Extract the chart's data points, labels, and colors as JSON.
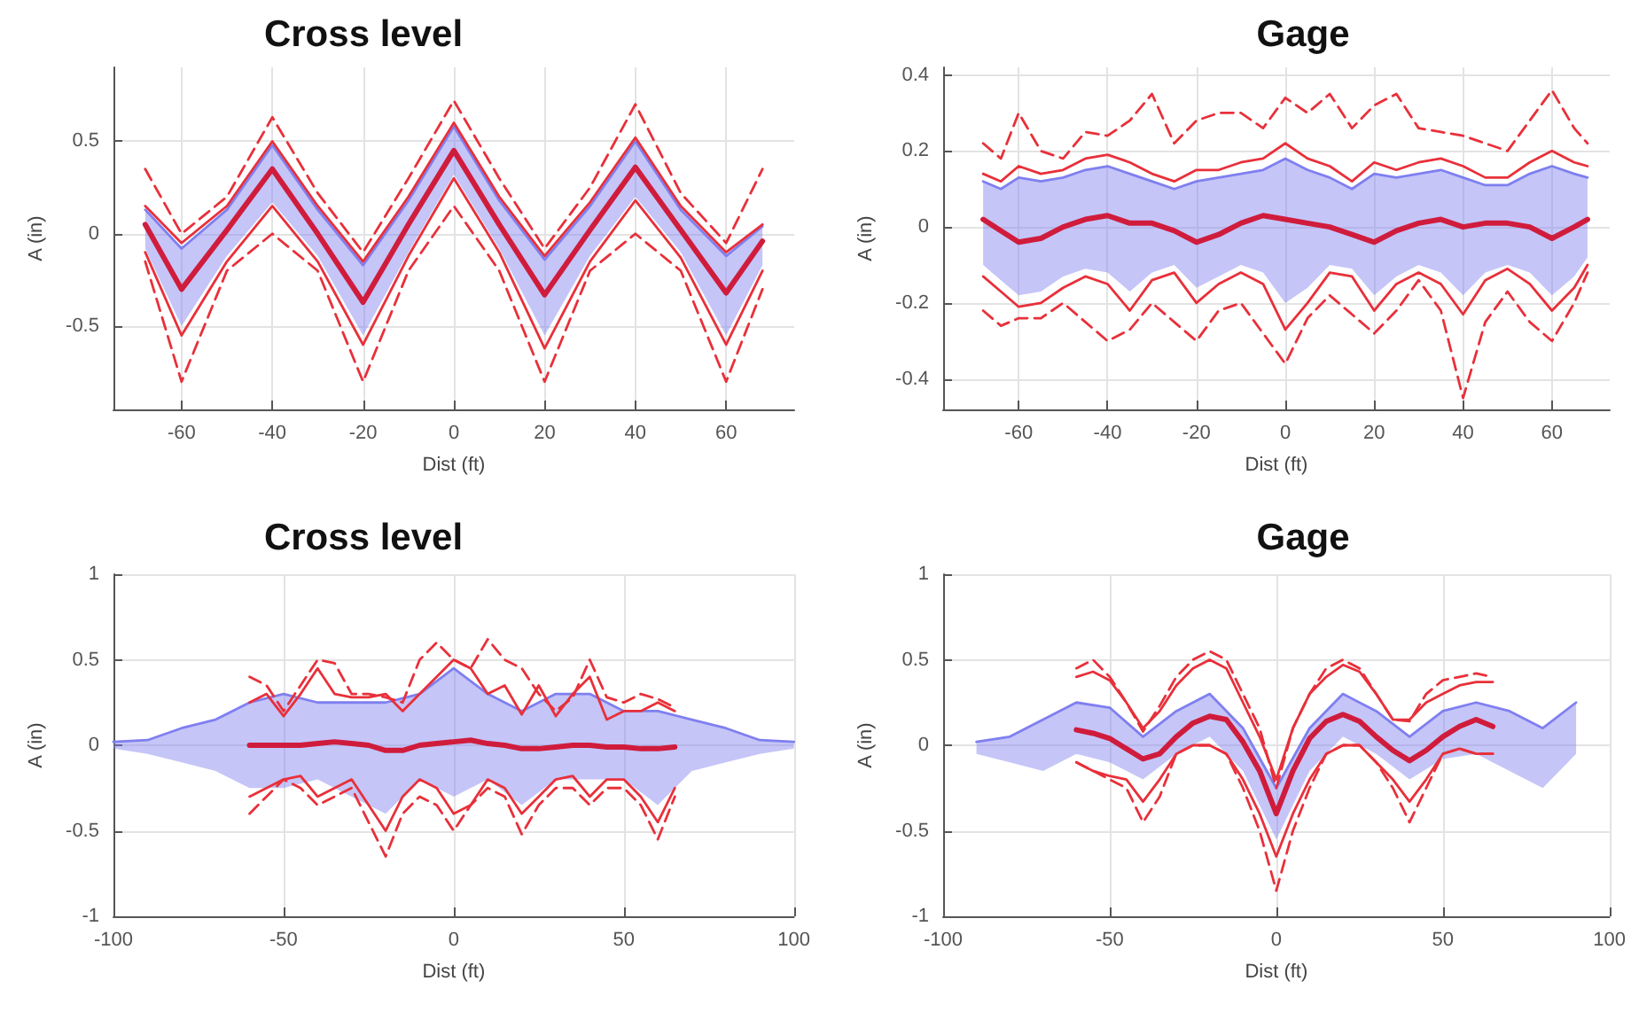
{
  "chart_data": [
    {
      "type": "line",
      "title": "Cross level",
      "xlabel": "Dist (ft)",
      "ylabel": "A (in)",
      "grid": true,
      "xlim": [
        -75,
        75
      ],
      "xticks": [
        -60,
        -40,
        -20,
        0,
        20,
        40,
        60
      ],
      "ylim": [
        -0.95,
        0.9
      ],
      "yticks": [
        -0.5,
        0,
        0.5
      ],
      "x": [
        -68,
        -60,
        -50,
        -40,
        -30,
        -20,
        -10,
        0,
        10,
        20,
        30,
        40,
        50,
        60,
        68
      ],
      "series": [
        {
          "color": "#7f7ff0",
          "line_style": "solid",
          "values": [
            0.13,
            -0.08,
            0.13,
            0.48,
            0.13,
            -0.17,
            0.18,
            0.58,
            0.18,
            -0.14,
            0.15,
            0.5,
            0.13,
            -0.12,
            0.04
          ],
          "lower": [
            -0.08,
            -0.5,
            -0.12,
            0.17,
            -0.12,
            -0.55,
            -0.1,
            0.32,
            -0.08,
            -0.55,
            -0.12,
            0.2,
            -0.1,
            -0.55,
            -0.17
          ],
          "upper": [
            0.13,
            -0.08,
            0.13,
            0.48,
            0.13,
            -0.17,
            0.18,
            0.58,
            0.18,
            -0.14,
            0.15,
            0.5,
            0.13,
            -0.12,
            0.04
          ]
        },
        {
          "color": "#d01c3c",
          "line_style": "solid",
          "values": [
            0.05,
            -0.3,
            0.02,
            0.35,
            0,
            -0.37,
            0.05,
            0.45,
            0.05,
            -0.33,
            0.02,
            0.36,
            0.02,
            -0.32,
            -0.04
          ]
        },
        {
          "color": "#e8303a",
          "line_style": "solid",
          "values": [
            0.15,
            -0.05,
            0.15,
            0.5,
            0.15,
            -0.15,
            0.2,
            0.6,
            0.2,
            -0.12,
            0.17,
            0.52,
            0.15,
            -0.1,
            0.05
          ]
        },
        {
          "color": "#e8303a",
          "line_style": "solid",
          "values": [
            -0.1,
            -0.55,
            -0.15,
            0.15,
            -0.15,
            -0.6,
            -0.12,
            0.3,
            -0.1,
            -0.62,
            -0.15,
            0.18,
            -0.13,
            -0.6,
            -0.2
          ]
        },
        {
          "color": "#e8303a",
          "line_style": "dashed",
          "values": [
            0.35,
            0.0,
            0.2,
            0.63,
            0.22,
            -0.1,
            0.3,
            0.72,
            0.3,
            -0.08,
            0.25,
            0.7,
            0.22,
            -0.05,
            0.35
          ]
        },
        {
          "color": "#e8303a",
          "line_style": "dashed",
          "values": [
            -0.15,
            -0.8,
            -0.2,
            0.0,
            -0.2,
            -0.8,
            -0.2,
            0.15,
            -0.2,
            -0.8,
            -0.2,
            0.0,
            -0.2,
            -0.8,
            -0.3
          ]
        }
      ]
    },
    {
      "type": "line",
      "title": "Gage",
      "xlabel": "Dist (ft)",
      "ylabel": "A (in)",
      "grid": true,
      "xlim": [
        -77,
        73
      ],
      "xticks": [
        -60,
        -40,
        -20,
        0,
        20,
        40,
        60
      ],
      "ylim": [
        -0.48,
        0.42
      ],
      "yticks": [
        -0.4,
        -0.2,
        0,
        0.2,
        0.4
      ],
      "x": [
        -68,
        -64,
        -60,
        -55,
        -50,
        -45,
        -40,
        -35,
        -30,
        -25,
        -20,
        -15,
        -10,
        -5,
        0,
        5,
        10,
        15,
        20,
        25,
        30,
        35,
        40,
        45,
        50,
        55,
        60,
        65,
        68
      ],
      "series": [
        {
          "color": "#7f7ff0",
          "line_style": "solid",
          "values": [
            0.12,
            0.1,
            0.13,
            0.12,
            0.13,
            0.15,
            0.16,
            0.14,
            0.12,
            0.1,
            0.12,
            0.13,
            0.14,
            0.15,
            0.18,
            0.15,
            0.13,
            0.1,
            0.14,
            0.13,
            0.14,
            0.15,
            0.13,
            0.11,
            0.11,
            0.14,
            0.16,
            0.14,
            0.13
          ],
          "lower": [
            -0.1,
            -0.14,
            -0.18,
            -0.17,
            -0.13,
            -0.11,
            -0.12,
            -0.17,
            -0.12,
            -0.1,
            -0.16,
            -0.13,
            -0.1,
            -0.12,
            -0.2,
            -0.16,
            -0.1,
            -0.11,
            -0.18,
            -0.13,
            -0.1,
            -0.12,
            -0.18,
            -0.12,
            -0.1,
            -0.12,
            -0.18,
            -0.13,
            -0.08
          ],
          "upper": [
            0.12,
            0.1,
            0.13,
            0.12,
            0.13,
            0.15,
            0.16,
            0.14,
            0.12,
            0.1,
            0.12,
            0.13,
            0.14,
            0.15,
            0.18,
            0.15,
            0.13,
            0.1,
            0.14,
            0.13,
            0.14,
            0.15,
            0.13,
            0.11,
            0.11,
            0.14,
            0.16,
            0.14,
            0.13
          ]
        },
        {
          "color": "#d01c3c",
          "line_style": "solid",
          "values": [
            0.02,
            -0.01,
            -0.04,
            -0.03,
            0.0,
            0.02,
            0.03,
            0.01,
            0.01,
            -0.01,
            -0.04,
            -0.02,
            0.01,
            0.03,
            0.02,
            0.01,
            0.0,
            -0.02,
            -0.04,
            -0.01,
            0.01,
            0.02,
            0.0,
            0.01,
            0.01,
            0.0,
            -0.03,
            0.0,
            0.02
          ]
        },
        {
          "color": "#e8303a",
          "line_style": "solid",
          "values": [
            0.14,
            0.12,
            0.16,
            0.14,
            0.15,
            0.18,
            0.19,
            0.17,
            0.14,
            0.12,
            0.15,
            0.15,
            0.17,
            0.18,
            0.22,
            0.18,
            0.16,
            0.12,
            0.17,
            0.15,
            0.17,
            0.18,
            0.16,
            0.13,
            0.13,
            0.17,
            0.2,
            0.17,
            0.16
          ]
        },
        {
          "color": "#e8303a",
          "line_style": "solid",
          "values": [
            -0.13,
            -0.17,
            -0.21,
            -0.2,
            -0.16,
            -0.13,
            -0.15,
            -0.22,
            -0.14,
            -0.12,
            -0.2,
            -0.15,
            -0.12,
            -0.15,
            -0.27,
            -0.2,
            -0.12,
            -0.13,
            -0.22,
            -0.15,
            -0.12,
            -0.15,
            -0.23,
            -0.14,
            -0.11,
            -0.15,
            -0.22,
            -0.16,
            -0.1
          ]
        },
        {
          "color": "#e8303a",
          "line_style": "dashed",
          "values": [
            0.22,
            0.18,
            0.3,
            0.2,
            0.18,
            0.25,
            0.24,
            0.28,
            0.35,
            0.22,
            0.28,
            0.3,
            0.3,
            0.26,
            0.34,
            0.3,
            0.35,
            0.26,
            0.32,
            0.35,
            0.26,
            0.25,
            0.24,
            0.22,
            0.2,
            0.28,
            0.36,
            0.26,
            0.22
          ]
        },
        {
          "color": "#e8303a",
          "line_style": "dashed",
          "values": [
            -0.22,
            -0.26,
            -0.24,
            -0.24,
            -0.2,
            -0.25,
            -0.3,
            -0.27,
            -0.2,
            -0.25,
            -0.3,
            -0.22,
            -0.2,
            -0.28,
            -0.36,
            -0.24,
            -0.18,
            -0.23,
            -0.28,
            -0.22,
            -0.14,
            -0.22,
            -0.45,
            -0.25,
            -0.17,
            -0.25,
            -0.3,
            -0.2,
            -0.12
          ]
        }
      ]
    },
    {
      "type": "line",
      "title": "Cross level",
      "xlabel": "Dist (ft)",
      "ylabel": "A (in)",
      "grid": true,
      "xlim": [
        -100,
        100
      ],
      "xticks": [
        -100,
        -50,
        0,
        50,
        100
      ],
      "ylim": [
        -1,
        1
      ],
      "yticks": [
        -1,
        -0.5,
        0,
        0.5,
        1
      ],
      "x": [
        -60,
        -55,
        -50,
        -45,
        -40,
        -35,
        -30,
        -25,
        -20,
        -15,
        -10,
        -5,
        0,
        5,
        10,
        15,
        20,
        25,
        30,
        35,
        40,
        45,
        50,
        55,
        60,
        65
      ],
      "series": [
        {
          "color": "#7f7ff0",
          "line_style": "solid",
          "x": [
            -100,
            -90,
            -80,
            -70,
            -60,
            -50,
            -40,
            -30,
            -20,
            -10,
            0,
            10,
            20,
            30,
            40,
            50,
            60,
            70,
            80,
            90,
            100
          ],
          "values": [
            0.02,
            0.03,
            0.1,
            0.15,
            0.25,
            0.3,
            0.25,
            0.25,
            0.25,
            0.3,
            0.45,
            0.3,
            0.2,
            0.3,
            0.3,
            0.2,
            0.2,
            0.15,
            0.1,
            0.03,
            0.02
          ],
          "lower": [
            -0.02,
            -0.05,
            -0.1,
            -0.15,
            -0.25,
            -0.25,
            -0.2,
            -0.3,
            -0.4,
            -0.2,
            -0.3,
            -0.2,
            -0.35,
            -0.2,
            -0.2,
            -0.2,
            -0.35,
            -0.15,
            -0.1,
            -0.05,
            -0.02
          ],
          "upper": [
            0.02,
            0.03,
            0.1,
            0.15,
            0.25,
            0.3,
            0.25,
            0.25,
            0.25,
            0.3,
            0.45,
            0.3,
            0.2,
            0.3,
            0.3,
            0.2,
            0.2,
            0.15,
            0.1,
            0.03,
            0.02
          ]
        },
        {
          "color": "#d01c3c",
          "line_style": "solid",
          "values": [
            0,
            0,
            0,
            0,
            0.01,
            0.02,
            0.01,
            0,
            -0.03,
            -0.03,
            0,
            0.01,
            0.02,
            0.03,
            0.01,
            0,
            -0.02,
            -0.02,
            -0.01,
            0,
            0,
            -0.01,
            -0.01,
            -0.02,
            -0.02,
            -0.01
          ]
        },
        {
          "color": "#e8303a",
          "line_style": "solid",
          "values": [
            0.25,
            0.3,
            0.17,
            0.3,
            0.45,
            0.3,
            0.28,
            0.28,
            0.3,
            0.2,
            0.3,
            0.4,
            0.5,
            0.45,
            0.3,
            0.35,
            0.18,
            0.35,
            0.17,
            0.3,
            0.4,
            0.15,
            0.2,
            0.2,
            0.25,
            0.2
          ]
        },
        {
          "color": "#e8303a",
          "line_style": "solid",
          "values": [
            -0.3,
            -0.25,
            -0.2,
            -0.18,
            -0.3,
            -0.25,
            -0.2,
            -0.35,
            -0.5,
            -0.3,
            -0.2,
            -0.25,
            -0.4,
            -0.35,
            -0.2,
            -0.25,
            -0.4,
            -0.3,
            -0.2,
            -0.18,
            -0.3,
            -0.2,
            -0.2,
            -0.3,
            -0.45,
            -0.25
          ]
        },
        {
          "color": "#e8303a",
          "line_style": "dashed",
          "values": [
            0.4,
            0.35,
            0.2,
            0.35,
            0.5,
            0.48,
            0.3,
            0.3,
            0.28,
            0.25,
            0.5,
            0.6,
            0.5,
            0.45,
            0.62,
            0.5,
            0.45,
            0.3,
            0.2,
            0.28,
            0.5,
            0.28,
            0.25,
            0.3,
            0.27,
            0.22
          ]
        },
        {
          "color": "#e8303a",
          "line_style": "dashed",
          "values": [
            -0.4,
            -0.3,
            -0.2,
            -0.25,
            -0.35,
            -0.3,
            -0.25,
            -0.45,
            -0.65,
            -0.4,
            -0.3,
            -0.35,
            -0.5,
            -0.35,
            -0.25,
            -0.3,
            -0.52,
            -0.35,
            -0.25,
            -0.25,
            -0.35,
            -0.25,
            -0.25,
            -0.35,
            -0.55,
            -0.3
          ]
        }
      ]
    },
    {
      "type": "line",
      "title": "Gage",
      "xlabel": "Dist (ft)",
      "ylabel": "A (in)",
      "grid": true,
      "xlim": [
        -100,
        100
      ],
      "xticks": [
        -100,
        -50,
        0,
        50,
        100
      ],
      "ylim": [
        -1,
        1
      ],
      "yticks": [
        -1,
        -0.5,
        0,
        0.5,
        1
      ],
      "x": [
        -60,
        -55,
        -50,
        -45,
        -40,
        -35,
        -30,
        -25,
        -20,
        -15,
        -10,
        -5,
        0,
        5,
        10,
        15,
        20,
        25,
        30,
        35,
        40,
        45,
        50,
        55,
        60,
        65
      ],
      "series": [
        {
          "color": "#7f7ff0",
          "line_style": "solid",
          "x": [
            -90,
            -80,
            -70,
            -60,
            -50,
            -40,
            -30,
            -20,
            -10,
            0,
            10,
            20,
            30,
            40,
            50,
            60,
            70,
            80,
            90
          ],
          "values": [
            0.02,
            0.05,
            0.15,
            0.25,
            0.22,
            0.05,
            0.2,
            0.3,
            0.1,
            -0.25,
            0.1,
            0.3,
            0.2,
            0.05,
            0.2,
            0.25,
            0.2,
            0.1,
            0.25
          ],
          "lower": [
            -0.05,
            -0.1,
            -0.15,
            -0.05,
            -0.1,
            -0.2,
            -0.05,
            0.05,
            -0.15,
            -0.55,
            -0.15,
            0.05,
            -0.05,
            -0.2,
            -0.08,
            -0.05,
            -0.15,
            -0.25,
            -0.05
          ],
          "upper": [
            0.02,
            0.05,
            0.15,
            0.25,
            0.22,
            0.05,
            0.2,
            0.3,
            0.1,
            -0.25,
            0.1,
            0.3,
            0.2,
            0.05,
            0.2,
            0.25,
            0.2,
            0.1,
            0.25
          ]
        },
        {
          "color": "#d01c3c",
          "line_style": "solid",
          "values": [
            0.09,
            0.07,
            0.04,
            -0.02,
            -0.08,
            -0.05,
            0.05,
            0.13,
            0.17,
            0.15,
            0.02,
            -0.15,
            -0.4,
            -0.15,
            0.04,
            0.14,
            0.18,
            0.14,
            0.05,
            -0.03,
            -0.09,
            -0.03,
            0.05,
            0.11,
            0.15,
            0.11
          ]
        },
        {
          "color": "#e8303a",
          "line_style": "solid",
          "values": [
            0.4,
            0.43,
            0.38,
            0.25,
            0.1,
            0.2,
            0.35,
            0.45,
            0.5,
            0.45,
            0.25,
            0.05,
            -0.2,
            0.1,
            0.3,
            0.4,
            0.47,
            0.43,
            0.3,
            0.15,
            0.15,
            0.25,
            0.3,
            0.35,
            0.37,
            0.37
          ]
        },
        {
          "color": "#e8303a",
          "line_style": "solid",
          "values": [
            -0.1,
            -0.15,
            -0.18,
            -0.2,
            -0.33,
            -0.2,
            -0.05,
            0.0,
            0.0,
            -0.05,
            -0.2,
            -0.4,
            -0.65,
            -0.4,
            -0.2,
            -0.05,
            0.0,
            0.0,
            -0.1,
            -0.2,
            -0.33,
            -0.2,
            -0.05,
            -0.02,
            -0.05,
            -0.05
          ]
        },
        {
          "color": "#e8303a",
          "line_style": "dashed",
          "values": [
            0.45,
            0.5,
            0.4,
            0.25,
            0.08,
            0.23,
            0.4,
            0.5,
            0.55,
            0.5,
            0.3,
            0.1,
            -0.25,
            0.1,
            0.3,
            0.45,
            0.5,
            0.45,
            0.3,
            0.15,
            0.14,
            0.3,
            0.38,
            0.4,
            0.42,
            0.4
          ]
        },
        {
          "color": "#e8303a",
          "line_style": "dashed",
          "values": [
            -0.1,
            -0.15,
            -0.2,
            -0.25,
            -0.45,
            -0.3,
            -0.05,
            0.0,
            0.0,
            -0.05,
            -0.25,
            -0.5,
            -0.85,
            -0.5,
            -0.25,
            -0.05,
            0.0,
            0.0,
            -0.1,
            -0.25,
            -0.45,
            -0.25,
            -0.05,
            -0.02,
            -0.05,
            -0.05
          ]
        }
      ]
    }
  ]
}
